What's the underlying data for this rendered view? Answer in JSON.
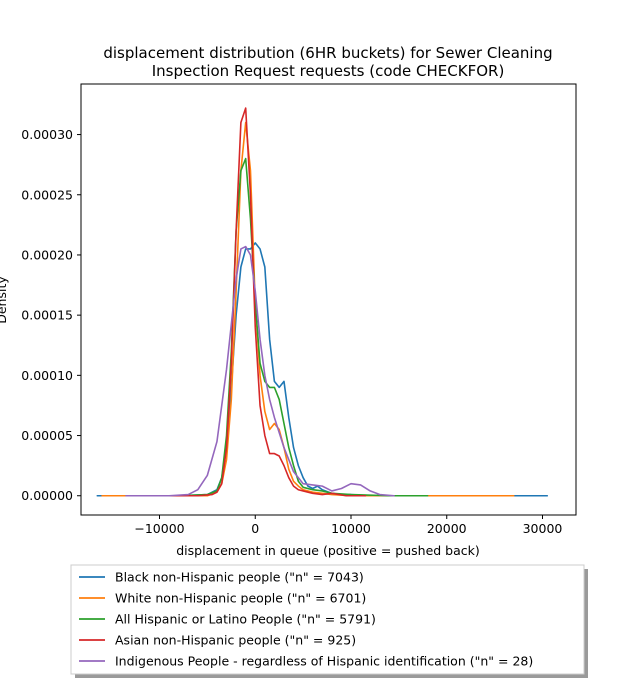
{
  "chart_data": {
    "type": "line",
    "title": "displacement distribution (6HR buckets) for Sewer Cleaning\nInspection Request requests (code CHECKFOR)",
    "xlabel": "displacement in queue (positive = pushed back)",
    "ylabel": "Density",
    "xlim": [
      -18200,
      33500
    ],
    "ylim": [
      -1.6e-05,
      0.000342
    ],
    "x_ticks": [
      -10000,
      0,
      10000,
      20000,
      30000
    ],
    "x_tick_labels": [
      "−10000",
      "0",
      "10000",
      "20000",
      "30000"
    ],
    "y_ticks": [
      0,
      5e-05,
      0.0001,
      0.00015,
      0.0002,
      0.00025,
      0.0003
    ],
    "y_tick_labels": [
      "0.00000",
      "0.00005",
      "0.00010",
      "0.00015",
      "0.00020",
      "0.00025",
      "0.00030"
    ],
    "grid": false,
    "legend_position": "below plot",
    "series": [
      {
        "name": "Black non-Hispanic people (\"n\" = 7043)",
        "color": "#1f77b4",
        "x": [
          -16500,
          -8000,
          -5000,
          -4000,
          -3500,
          -3000,
          -2500,
          -2000,
          -1500,
          -1000,
          -500,
          0,
          500,
          1000,
          1500,
          2000,
          2500,
          3000,
          3500,
          4000,
          4500,
          5000,
          5500,
          6000,
          6500,
          7000,
          8000,
          9000,
          10000,
          12000,
          15000,
          20000,
          25000,
          30500
        ],
        "y": [
          0,
          0,
          1e-06,
          5e-06,
          1.5e-05,
          4e-05,
          9e-05,
          0.00015,
          0.00019,
          0.000205,
          0.000205,
          0.00021,
          0.000205,
          0.00019,
          0.00013,
          9.5e-05,
          9e-05,
          9.5e-05,
          6.5e-05,
          4e-05,
          2.5e-05,
          1.5e-05,
          8e-06,
          6e-06,
          8e-06,
          5e-06,
          2e-06,
          1e-06,
          1e-06,
          0,
          0,
          0,
          0,
          0
        ]
      },
      {
        "name": "White non-Hispanic people (\"n\" = 6701)",
        "color": "#ff7f0e",
        "x": [
          -16000,
          -8000,
          -5000,
          -4000,
          -3500,
          -3000,
          -2500,
          -2000,
          -1500,
          -1000,
          -500,
          0,
          500,
          1000,
          1500,
          2000,
          2500,
          3000,
          3500,
          4000,
          4500,
          5000,
          6000,
          7000,
          8000,
          10000,
          15000,
          20000,
          27000
        ],
        "y": [
          0,
          0,
          0,
          3e-06,
          1e-05,
          3e-05,
          8e-05,
          0.00017,
          0.00027,
          0.00031,
          0.00027,
          0.00016,
          0.0001,
          7e-05,
          5.5e-05,
          6e-05,
          5.5e-05,
          4e-05,
          2.2e-05,
          1.2e-05,
          8e-06,
          5e-06,
          3e-06,
          2e-06,
          1e-06,
          0,
          0,
          0,
          0
        ]
      },
      {
        "name": "All Hispanic or Latino People (\"n\" = 5791)",
        "color": "#2ca02c",
        "x": [
          -12500,
          -8000,
          -5000,
          -4000,
          -3500,
          -3000,
          -2500,
          -2000,
          -1500,
          -1000,
          -500,
          0,
          500,
          1000,
          1500,
          2000,
          2500,
          3000,
          3500,
          4000,
          4500,
          5000,
          6000,
          7000,
          8000,
          10000,
          14000,
          18000
        ],
        "y": [
          0,
          0,
          1e-06,
          4e-06,
          1.5e-05,
          5e-05,
          0.00012,
          0.00022,
          0.00027,
          0.00028,
          0.00023,
          0.00016,
          0.00011,
          9.5e-05,
          9e-05,
          9e-05,
          8e-05,
          6e-05,
          4e-05,
          2.5e-05,
          1.2e-05,
          7e-06,
          5e-06,
          4e-06,
          2e-06,
          1e-06,
          0,
          0
        ]
      },
      {
        "name": "Asian non-Hispanic people (\"n\" = 925)",
        "color": "#d62728",
        "x": [
          -10000,
          -6000,
          -4500,
          -4000,
          -3500,
          -3000,
          -2500,
          -2000,
          -1500,
          -1000,
          -500,
          0,
          500,
          1000,
          1500,
          2000,
          2500,
          3000,
          3500,
          4000,
          4500,
          5000,
          6000,
          7000,
          8000,
          9500,
          11500
        ],
        "y": [
          0,
          0,
          1e-06,
          3e-06,
          1e-05,
          4e-05,
          0.00011,
          0.00022,
          0.00031,
          0.000322,
          0.00025,
          0.00014,
          7.5e-05,
          5e-05,
          3.5e-05,
          3.5e-05,
          3.3e-05,
          2.5e-05,
          1.5e-05,
          8e-06,
          5e-06,
          4e-06,
          2e-06,
          1e-06,
          2e-06,
          0,
          0
        ]
      },
      {
        "name": "Indigenous People - regardless of Hispanic identification (\"n\" = 28)",
        "color": "#9467bd",
        "x": [
          -13500,
          -9000,
          -7000,
          -6000,
          -5000,
          -4000,
          -3000,
          -2000,
          -1500,
          -1000,
          -500,
          0,
          500,
          1000,
          1500,
          2000,
          3000,
          4000,
          5000,
          6000,
          7000,
          8000,
          9000,
          10000,
          11000,
          12000,
          13000,
          14500
        ],
        "y": [
          0,
          0,
          1e-06,
          5e-06,
          1.7e-05,
          4.5e-05,
          0.000105,
          0.00018,
          0.000205,
          0.000207,
          0.0002,
          0.00017,
          0.00013,
          0.0001,
          8e-05,
          6.5e-05,
          4e-05,
          2e-05,
          1e-05,
          9e-06,
          8e-06,
          4e-06,
          6e-06,
          1e-05,
          9e-06,
          4e-06,
          1e-06,
          0
        ]
      }
    ]
  }
}
